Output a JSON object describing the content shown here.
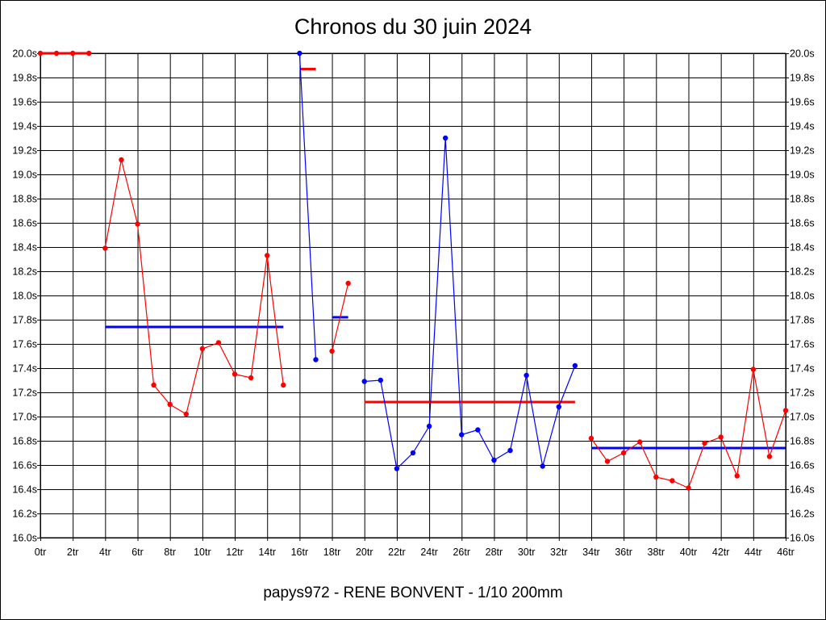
{
  "title": "Chronos du 30 juin 2024",
  "subtitle": "papys972 - RENE BONVENT - 1/10 200mm",
  "chart_data": {
    "type": "line",
    "title": "Chronos du 30 juin 2024",
    "xlabel": "",
    "ylabel": "",
    "xlim": [
      0,
      46
    ],
    "ylim": [
      16.0,
      20.0
    ],
    "grid": true,
    "legend": "none",
    "x_ticks": [
      "0tr",
      "2tr",
      "4tr",
      "6tr",
      "8tr",
      "10tr",
      "12tr",
      "14tr",
      "16tr",
      "18tr",
      "20tr",
      "22tr",
      "24tr",
      "26tr",
      "28tr",
      "30tr",
      "32tr",
      "34tr",
      "36tr",
      "38tr",
      "40tr",
      "42tr",
      "44tr",
      "46tr"
    ],
    "y_ticks": [
      "20.0s",
      "19.8s",
      "19.6s",
      "19.4s",
      "19.2s",
      "19.0s",
      "18.8s",
      "18.6s",
      "18.4s",
      "18.2s",
      "18.0s",
      "17.8s",
      "17.6s",
      "17.4s",
      "17.2s",
      "17.0s",
      "16.8s",
      "16.6s",
      "16.4s",
      "16.2s",
      "16.0s"
    ],
    "series": [
      {
        "color": "#ff0000",
        "x": [
          0,
          1,
          2,
          3
        ],
        "y": [
          20.0,
          20.0,
          20.0,
          20.0
        ]
      },
      {
        "color": "#ff0000",
        "x": [
          4,
          5,
          6,
          7,
          8,
          9,
          10,
          11,
          12,
          13,
          14,
          15
        ],
        "y": [
          18.39,
          19.12,
          18.59,
          17.26,
          17.1,
          17.02,
          17.56,
          17.61,
          17.35,
          17.32,
          18.33,
          17.26
        ]
      },
      {
        "color": "#0000ff",
        "x": [
          16,
          17
        ],
        "y": [
          20.0,
          17.47
        ]
      },
      {
        "color": "#ff0000",
        "x": [
          18,
          19
        ],
        "y": [
          17.54,
          18.1
        ]
      },
      {
        "color": "#0000ff",
        "x": [
          20,
          21,
          22,
          23,
          24,
          25,
          26,
          27,
          28,
          29,
          30,
          31,
          32,
          33
        ],
        "y": [
          17.29,
          17.3,
          16.57,
          16.7,
          16.92,
          19.3,
          16.85,
          16.89,
          16.64,
          16.72,
          17.34,
          16.59,
          17.08,
          17.42
        ]
      },
      {
        "color": "#ff0000",
        "x": [
          34,
          35,
          36,
          37,
          38,
          39,
          40,
          41,
          42,
          43,
          44,
          45,
          46
        ],
        "y": [
          16.82,
          16.63,
          16.7,
          16.79,
          16.5,
          16.47,
          16.41,
          16.78,
          16.83,
          16.51,
          17.39,
          16.67,
          17.05
        ]
      }
    ],
    "averages": [
      {
        "color": "#ff0000",
        "x": [
          0,
          3
        ],
        "y": 20.0
      },
      {
        "color": "#0000ff",
        "x": [
          4,
          15
        ],
        "y": 17.74
      },
      {
        "color": "#ff0000",
        "x": [
          16,
          17
        ],
        "y": 19.87
      },
      {
        "color": "#0000ff",
        "x": [
          18,
          19
        ],
        "y": 17.82
      },
      {
        "color": "#ff0000",
        "x": [
          20,
          33
        ],
        "y": 17.12
      },
      {
        "color": "#0000ff",
        "x": [
          34,
          46
        ],
        "y": 16.74
      }
    ]
  }
}
